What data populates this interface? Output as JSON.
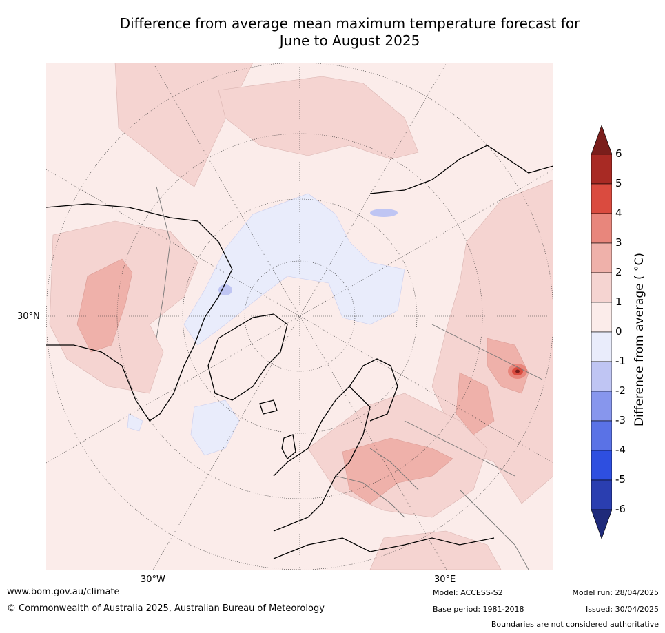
{
  "title": {
    "line1": "Difference from average mean maximum temperature forecast for",
    "line2": "June to August 2025"
  },
  "map": {
    "projection": "north-polar-stereographic",
    "lat_label": "30°N",
    "lon_labels": [
      "30°W",
      "30°E"
    ],
    "land_color": "#fbecea",
    "line_color": "#000000"
  },
  "colorbar": {
    "label": "Difference from average ( °C)",
    "ticks": [
      "6",
      "5",
      "4",
      "3",
      "2",
      "1",
      "0",
      "-1",
      "-2",
      "-3",
      "-4",
      "-5",
      "-6"
    ],
    "bins": [
      {
        "range": ">6",
        "color": "#7a1e1b"
      },
      {
        "range": "5 to 6",
        "color": "#a82a24"
      },
      {
        "range": "4 to 5",
        "color": "#da4b3f"
      },
      {
        "range": "3 to 4",
        "color": "#e8867c"
      },
      {
        "range": "2 to 3",
        "color": "#efb1aa"
      },
      {
        "range": "1 to 2",
        "color": "#f5d4d1"
      },
      {
        "range": "0 to 1",
        "color": "#fbecea"
      },
      {
        "range": "-1 to 0",
        "color": "#e9ecfb"
      },
      {
        "range": "-2 to -1",
        "color": "#bfc5f3"
      },
      {
        "range": "-3 to -2",
        "color": "#8796ed"
      },
      {
        "range": "-4 to -3",
        "color": "#5a72e6"
      },
      {
        "range": "-5 to -4",
        "color": "#2e4fe0"
      },
      {
        "range": "-6 to -5",
        "color": "#2a3eb0"
      },
      {
        "range": "<-6",
        "color": "#1f2a7a"
      }
    ]
  },
  "footer": {
    "website": "www.bom.gov.au/climate",
    "copyright": "© Commonwealth of Australia 2025, Australian Bureau of Meteorology",
    "model": "Model: ACCESS-S2",
    "base_period": "Base period: 1981-2018",
    "model_run": "Model run: 28/04/2025",
    "issued": "Issued: 30/04/2025",
    "disclaimer": "Boundaries are not considered authoritative"
  }
}
